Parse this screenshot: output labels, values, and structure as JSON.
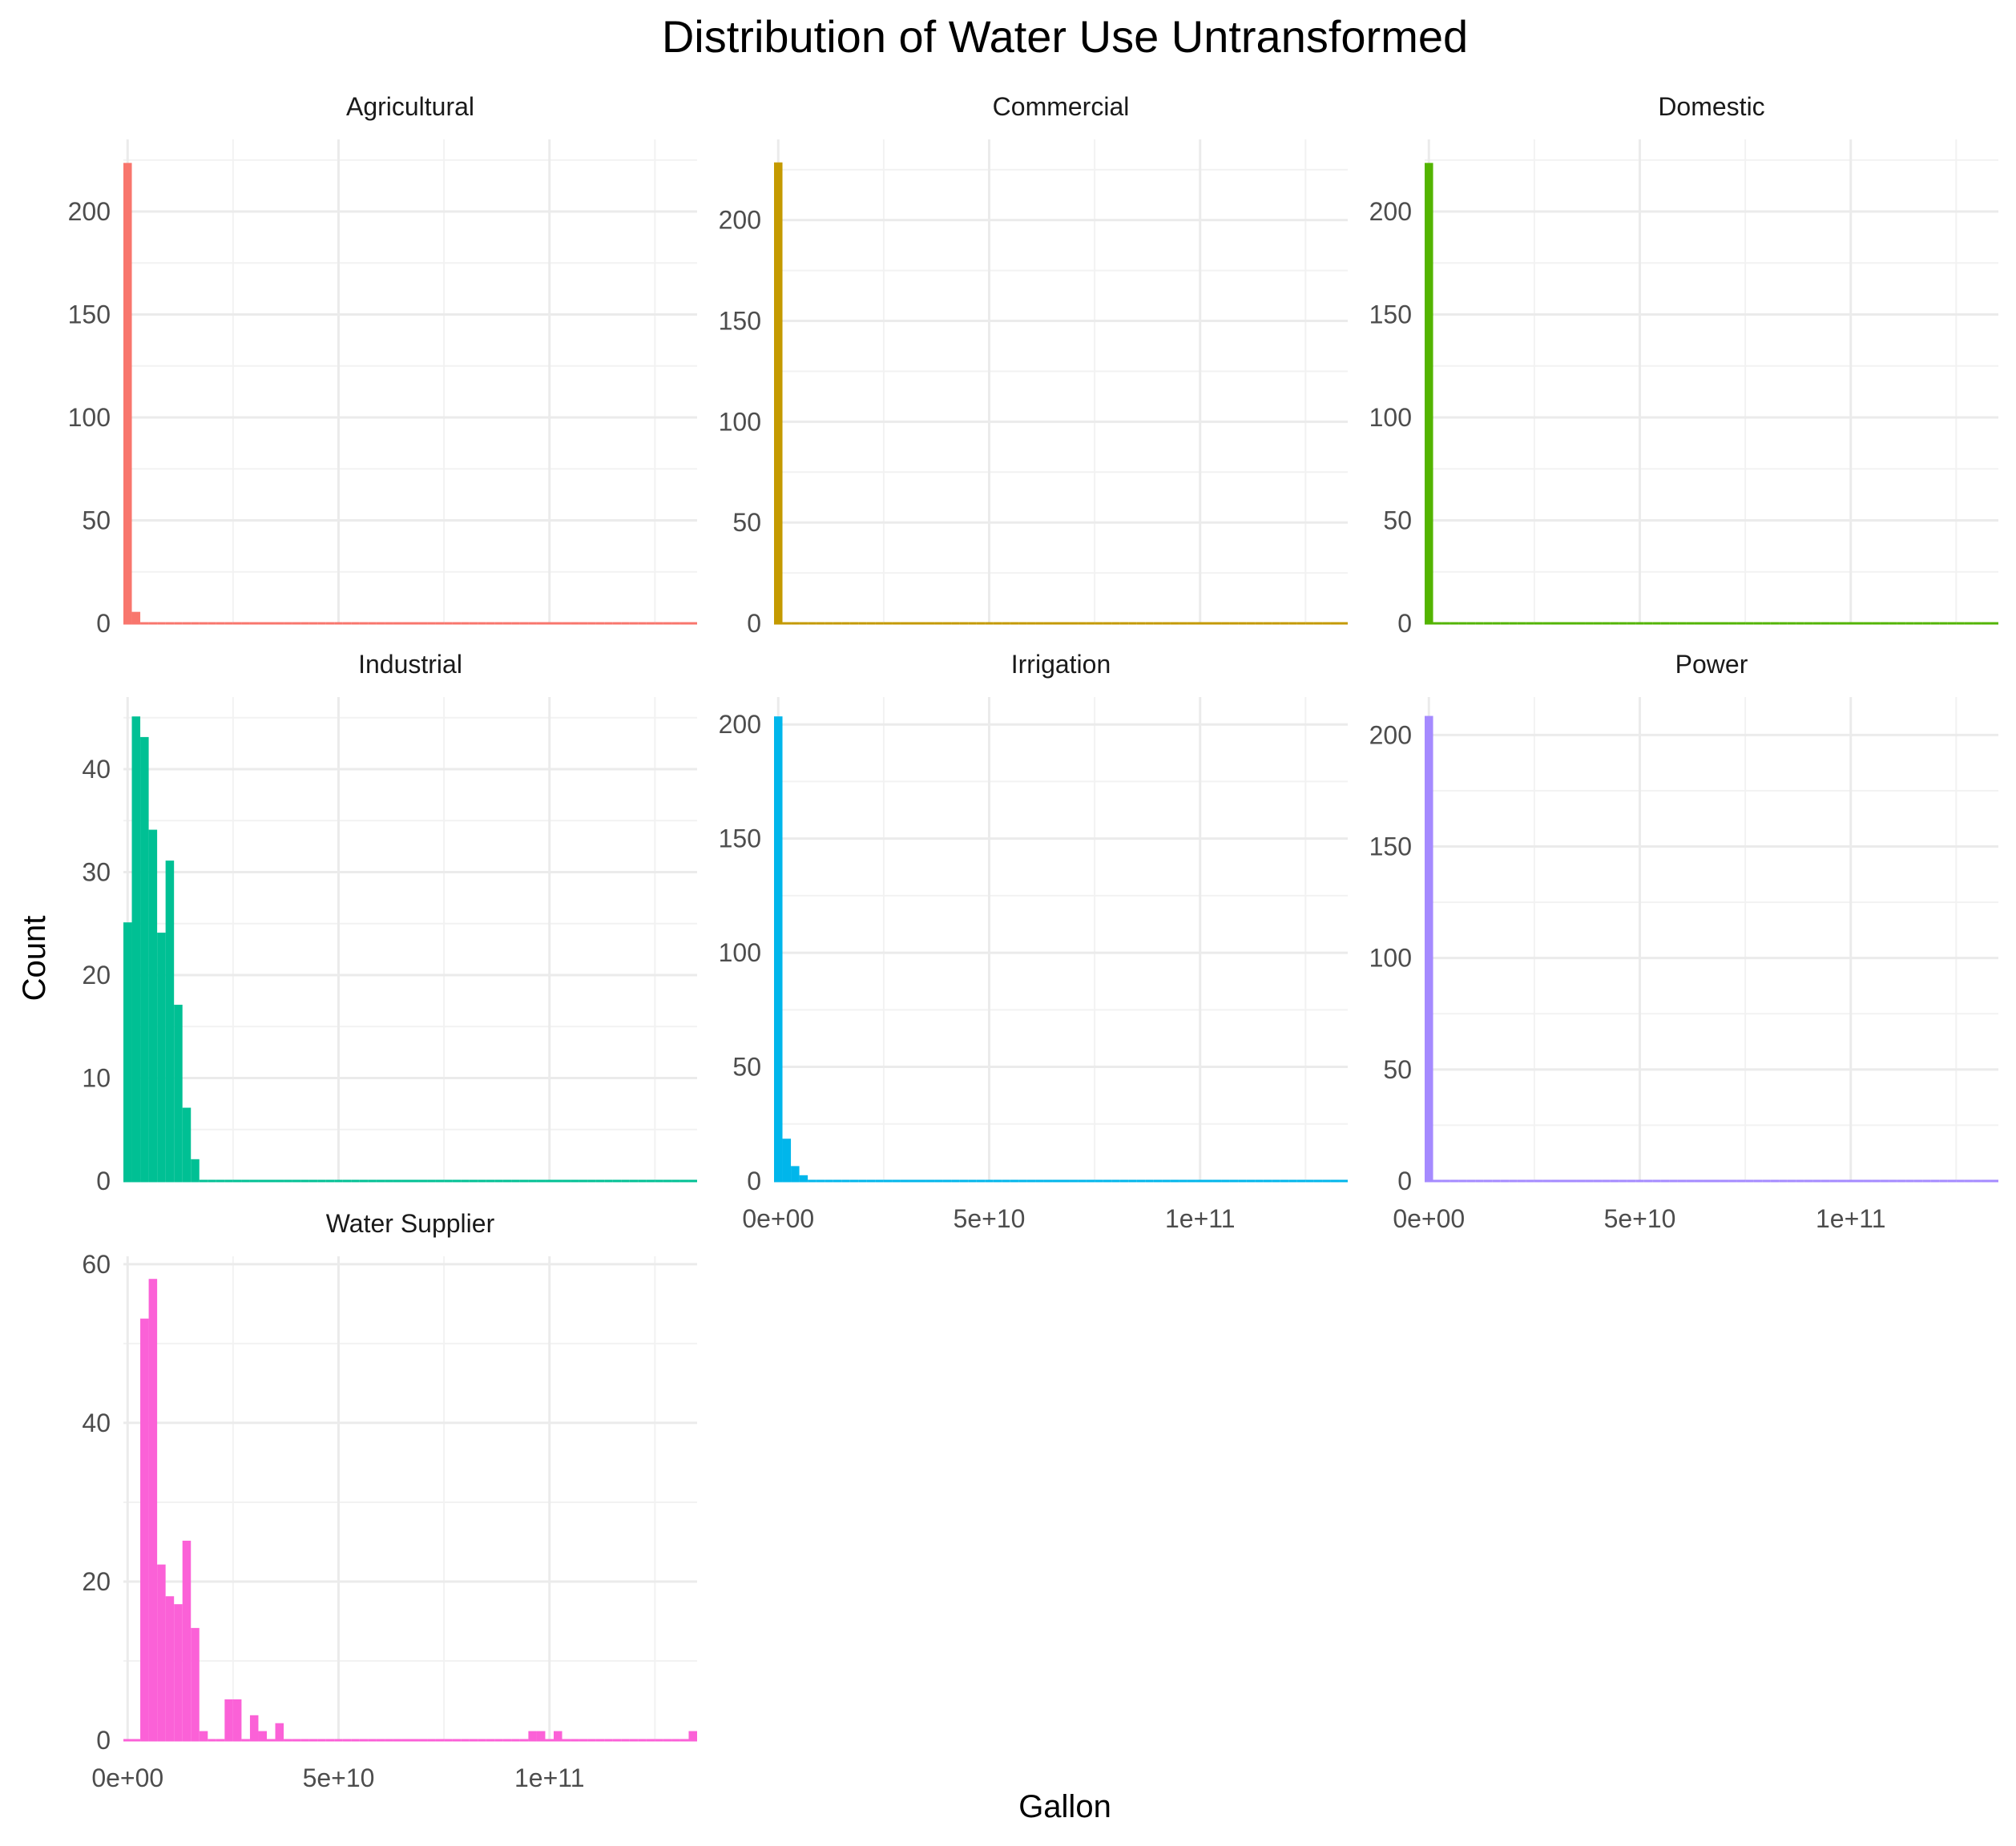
{
  "chart_data": {
    "type": "bar",
    "subtype": "faceted-histogram",
    "title": "Distribution of Water Use Untransformed",
    "xlabel": "Gallon",
    "ylabel": "Count",
    "legend": "none",
    "grid": true,
    "xlim": [
      -1000000000.0,
      135000000000.0
    ],
    "x_ticks": [
      0,
      50000000000,
      100000000000
    ],
    "x_tick_labels": [
      "0e+00",
      "5e+10",
      "1e+11"
    ],
    "bin_width": 2000000000.0,
    "bin_start": -1000000000.0,
    "facets": [
      {
        "name": "Agricultural",
        "color": "#F8766D",
        "ylim": [
          0,
          235
        ],
        "y_ticks": [
          0,
          50,
          100,
          150,
          200
        ],
        "counts": [
          223,
          5
        ]
      },
      {
        "name": "Commercial",
        "color": "#C49A00",
        "ylim": [
          0,
          240
        ],
        "y_ticks": [
          0,
          50,
          100,
          150,
          200
        ],
        "counts": [
          228
        ]
      },
      {
        "name": "Domestic",
        "color": "#53B400",
        "ylim": [
          0,
          235
        ],
        "y_ticks": [
          0,
          50,
          100,
          150,
          200
        ],
        "counts": [
          223
        ]
      },
      {
        "name": "Industrial",
        "color": "#00C094",
        "ylim": [
          0,
          47
        ],
        "y_ticks": [
          0,
          10,
          20,
          30,
          40
        ],
        "counts": [
          25,
          45,
          43,
          34,
          24,
          31,
          17,
          7,
          2
        ]
      },
      {
        "name": "Irrigation",
        "color": "#00B6EB",
        "ylim": [
          0,
          212
        ],
        "y_ticks": [
          0,
          50,
          100,
          150,
          200
        ],
        "counts": [
          203,
          18,
          6,
          2
        ]
      },
      {
        "name": "Power",
        "color": "#A58AFF",
        "ylim": [
          0,
          217
        ],
        "y_ticks": [
          0,
          50,
          100,
          150,
          200
        ],
        "counts": [
          208
        ]
      },
      {
        "name": "Water Supplier",
        "color": "#FB61D7",
        "ylim": [
          0,
          61
        ],
        "y_ticks": [
          0,
          20,
          40,
          60
        ],
        "counts": [
          0,
          0,
          53,
          58,
          22,
          18,
          17,
          25,
          14,
          1,
          0,
          0,
          5,
          5,
          0,
          3,
          1,
          0,
          2,
          0,
          0,
          0,
          0,
          0,
          0,
          0,
          0,
          0,
          0,
          0,
          0,
          0,
          0,
          0,
          0,
          0,
          0,
          0,
          0,
          0,
          0,
          0,
          0,
          0,
          0,
          0,
          0,
          0,
          1,
          1,
          0,
          1,
          0,
          0,
          0,
          0,
          0,
          0,
          0,
          0,
          0,
          0,
          0,
          0,
          0,
          0,
          0,
          1
        ]
      }
    ]
  }
}
